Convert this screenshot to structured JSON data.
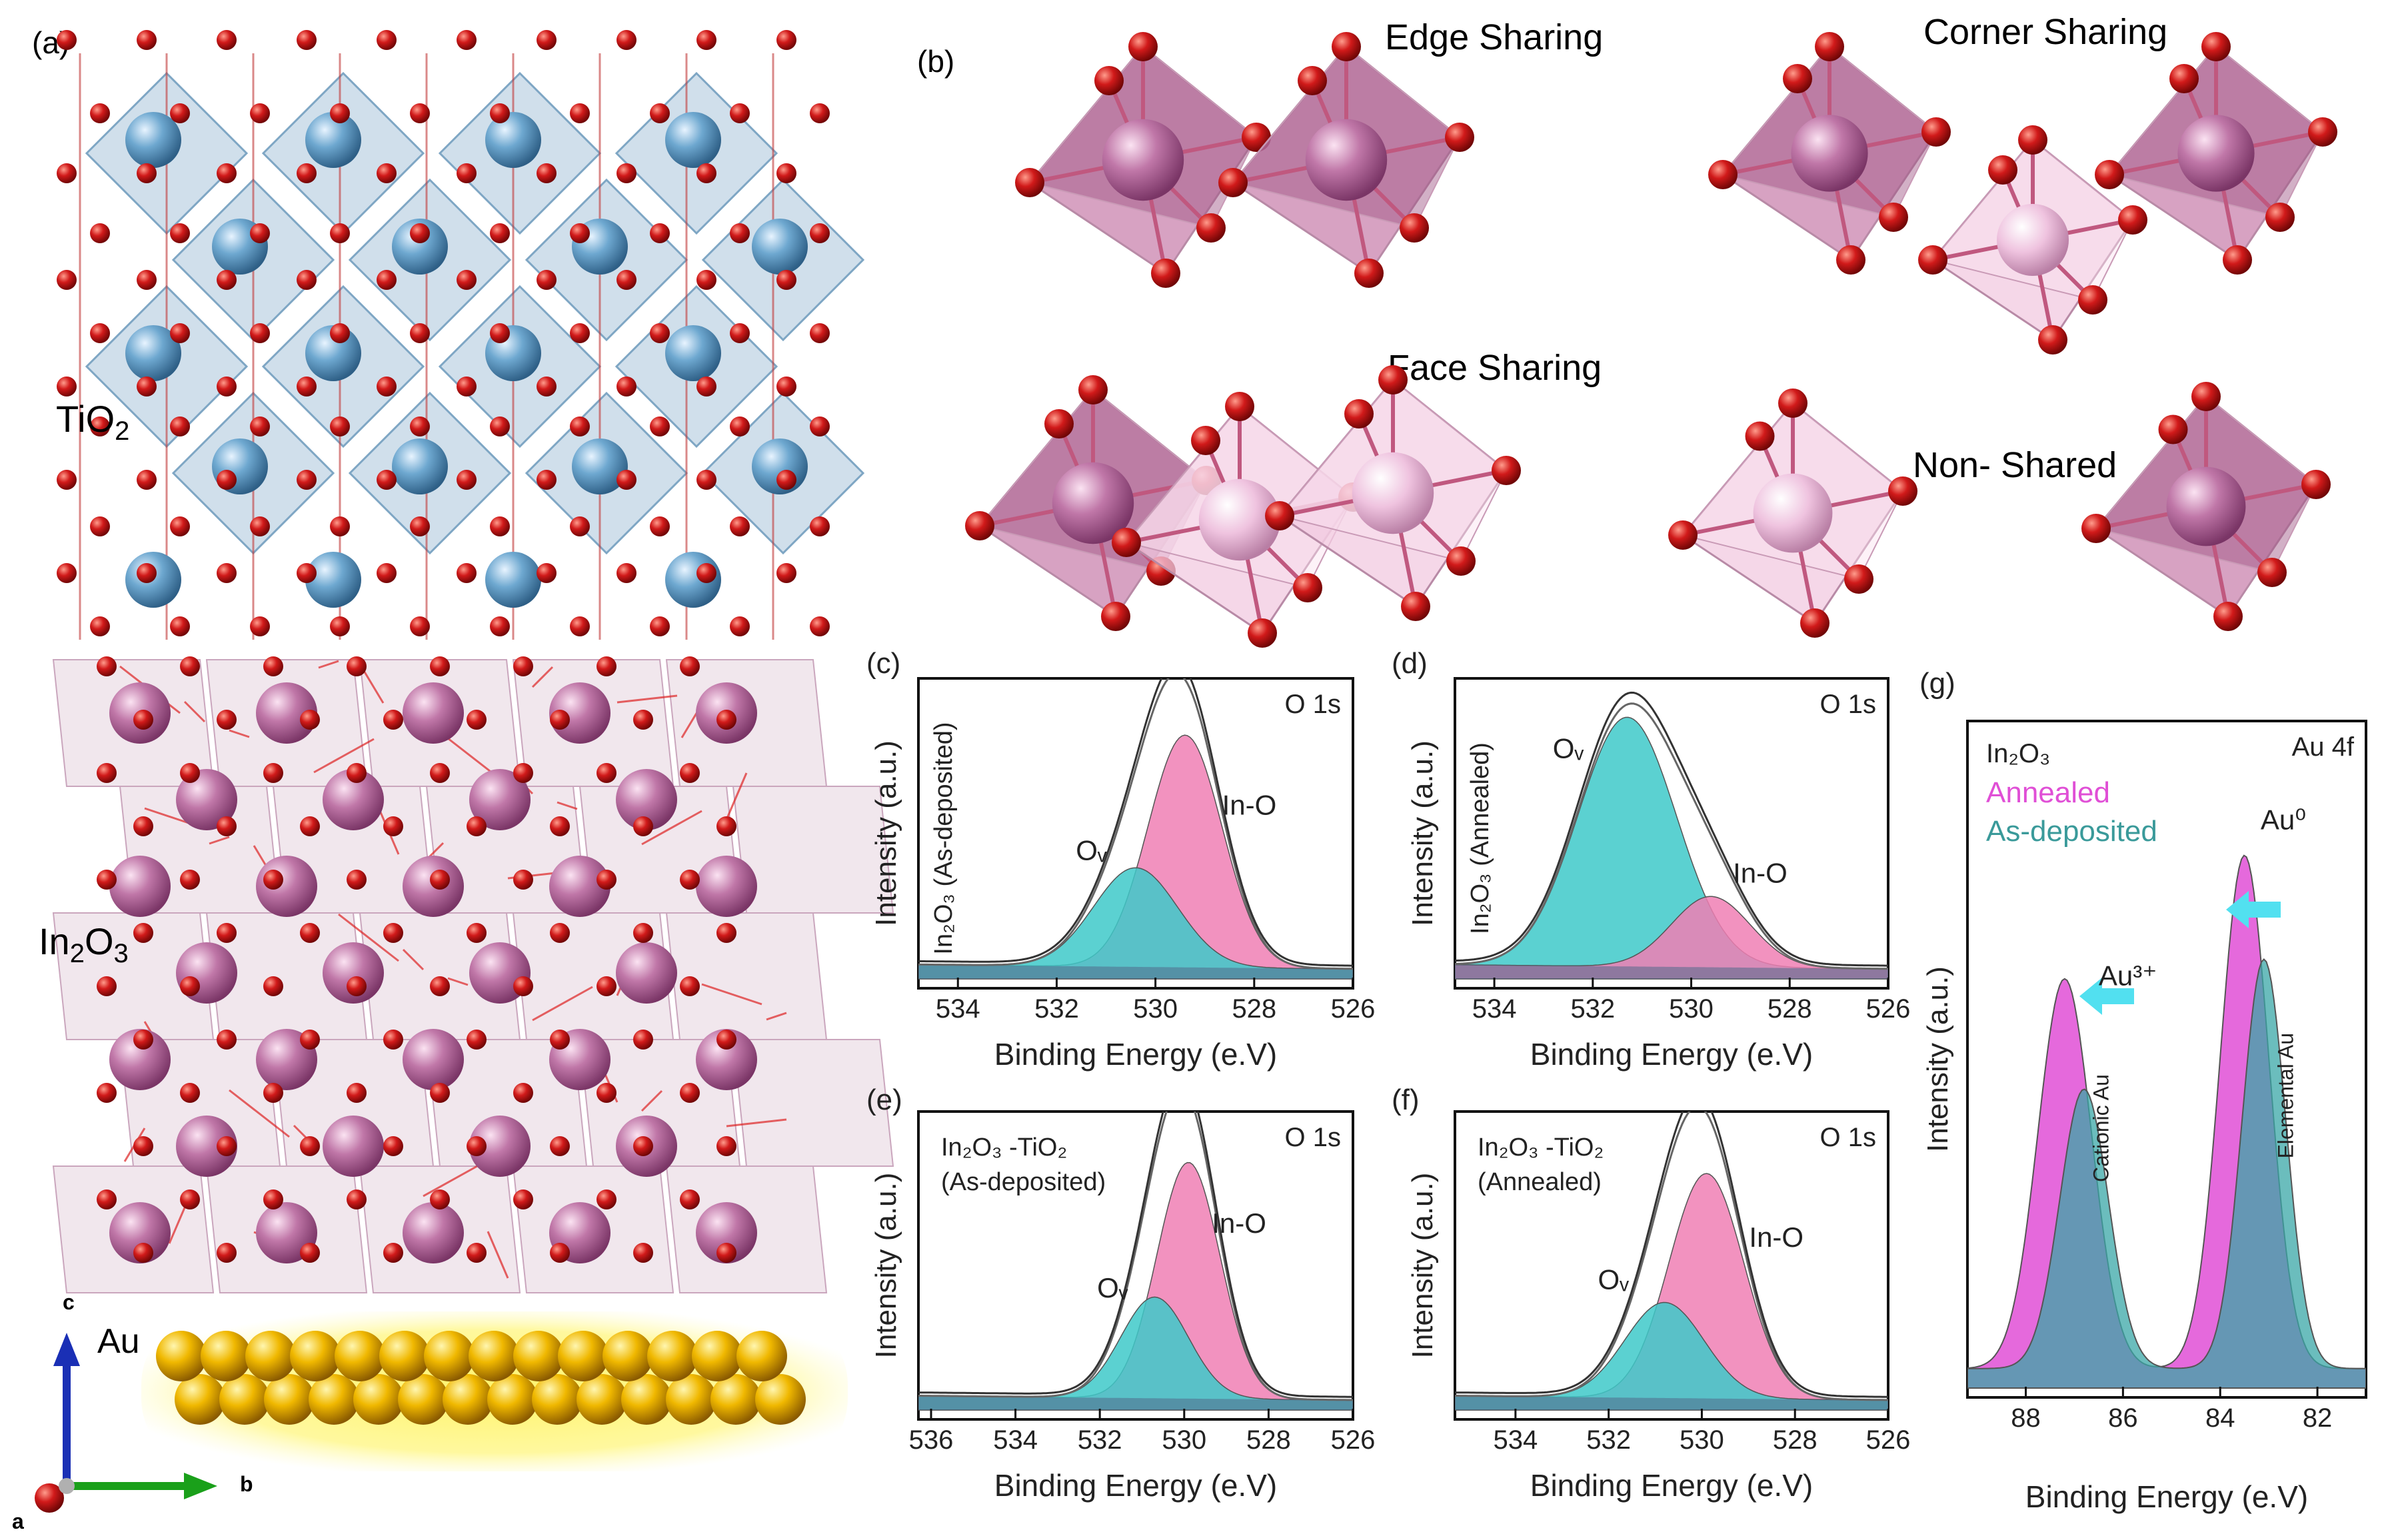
{
  "panels": {
    "a": {
      "label": "(a)",
      "tio2_label": "TiO",
      "tio2_sub": "2",
      "in2o3_label": "In",
      "in2o3_sub1": "2",
      "in2o3_mid": "O",
      "in2o3_sub2": "3",
      "au_label": "Au",
      "axis_a": "a",
      "axis_b": "b",
      "axis_c": "c"
    },
    "b": {
      "label": "(b)",
      "edge": "Edge Sharing",
      "corner": "Corner Sharing",
      "face": "Face Sharing",
      "nonshared": "Non- Shared"
    }
  },
  "colors": {
    "oxygen": "#d01818",
    "titanium": "#6ea8d0",
    "indium": "#c077a8",
    "gold": "#f0b800",
    "tio2_poly": "#a9c5da",
    "in2o3_poly": "#dcc4d3",
    "ov_fill": "#3ec9c9",
    "ino_fill": "#f07fb4",
    "annealed": "#e04fd6",
    "asdep": "#3a9a9a",
    "arrow": "#52e0f0"
  },
  "chart_data": [
    {
      "id": "c",
      "type": "area",
      "panel_label": "(c)",
      "corner": "O 1s",
      "side_label": "In₂O₃ (As-deposited)",
      "xlabel": "Binding Energy (e.V)",
      "ylabel": "Intensity (a.u.)",
      "xlim": [
        534.8,
        526
      ],
      "xticks": [
        534,
        532,
        530,
        528,
        526
      ],
      "series": [
        {
          "name": "In-O",
          "center": 529.4,
          "amplitude": 0.82,
          "width": 0.75
        },
        {
          "name": "Oᵥ",
          "center": 530.4,
          "amplitude": 0.35,
          "width": 0.85
        }
      ],
      "annotations": [
        {
          "text": "Oᵥ",
          "x": 531.3,
          "y": 0.42
        },
        {
          "text": "In-O",
          "x": 528.1,
          "y": 0.58
        }
      ]
    },
    {
      "id": "d",
      "type": "area",
      "panel_label": "(d)",
      "corner": "O 1s",
      "side_label": "In₂O₃ (Annealed)",
      "xlabel": "Binding Energy (e.V)",
      "ylabel": "Intensity (a.u.)",
      "xlim": [
        534.8,
        526
      ],
      "xticks": [
        534,
        532,
        530,
        528,
        526
      ],
      "series": [
        {
          "name": "Oᵥ",
          "center": 531.3,
          "amplitude": 0.88,
          "width": 1.0
        },
        {
          "name": "In-O",
          "center": 529.6,
          "amplitude": 0.25,
          "width": 0.8
        }
      ],
      "annotations": [
        {
          "text": "Oᵥ",
          "x": 532.5,
          "y": 0.78
        },
        {
          "text": "In-O",
          "x": 528.6,
          "y": 0.34
        }
      ]
    },
    {
      "id": "e",
      "type": "area",
      "panel_label": "(e)",
      "corner": "O 1s",
      "side_label_line1": "In₂O₃ -TiO₂",
      "side_label_line2": "(As-deposited)",
      "xlabel": "Binding Energy (e.V)",
      "ylabel": "Intensity (a.u.)",
      "xlim": [
        536.3,
        526
      ],
      "xticks": [
        536,
        534,
        532,
        530,
        528,
        526
      ],
      "series": [
        {
          "name": "In-O",
          "center": 529.9,
          "amplitude": 0.84,
          "width": 0.75
        },
        {
          "name": "Oᵥ",
          "center": 530.7,
          "amplitude": 0.36,
          "width": 0.8
        }
      ],
      "annotations": [
        {
          "text": "Oᵥ",
          "x": 531.7,
          "y": 0.4
        },
        {
          "text": "In-O",
          "x": 528.7,
          "y": 0.63
        }
      ]
    },
    {
      "id": "f",
      "type": "area",
      "panel_label": "(f)",
      "corner": "O 1s",
      "side_label_line1": "In₂O₃ -TiO₂",
      "side_label_line2": "(Annealed)",
      "xlabel": "Binding Energy (e.V)",
      "ylabel": "Intensity (a.u.)",
      "xlim": [
        535.3,
        526
      ],
      "xticks": [
        534,
        532,
        530,
        528,
        526
      ],
      "series": [
        {
          "name": "In-O",
          "center": 529.9,
          "amplitude": 0.8,
          "width": 0.8
        },
        {
          "name": "Oᵥ",
          "center": 530.8,
          "amplitude": 0.34,
          "width": 0.85
        }
      ],
      "annotations": [
        {
          "text": "Oᵥ",
          "x": 531.9,
          "y": 0.43
        },
        {
          "text": "In-O",
          "x": 528.4,
          "y": 0.58
        }
      ]
    },
    {
      "id": "g",
      "type": "area",
      "panel_label": "(g)",
      "corner": "Au 4f",
      "legend_title": "In₂O₃",
      "legend": [
        "Annealed",
        "As-deposited"
      ],
      "xlabel": "Binding Energy (e.V)",
      "ylabel": "Intensity (a.u.)",
      "xlim": [
        89.2,
        81
      ],
      "xticks": [
        88,
        86,
        84,
        82
      ],
      "series": [
        {
          "name": "Annealed",
          "peaks": [
            {
              "center": 87.2,
              "amplitude": 0.6,
              "width": 0.55
            },
            {
              "center": 83.5,
              "amplitude": 0.79,
              "width": 0.5
            }
          ]
        },
        {
          "name": "As-deposited",
          "peaks": [
            {
              "center": 86.8,
              "amplitude": 0.43,
              "width": 0.5
            },
            {
              "center": 83.1,
              "amplitude": 0.63,
              "width": 0.45
            }
          ]
        }
      ],
      "annotations": [
        {
          "text": "Au³⁺",
          "x": 85.9,
          "y": 0.62
        },
        {
          "text": "Au⁰",
          "x": 82.7,
          "y": 0.86
        },
        {
          "text": "Cationic Au",
          "x": 86.3,
          "y": 0.4
        },
        {
          "text": "Elemental Au",
          "x": 82.5,
          "y": 0.45
        }
      ]
    }
  ]
}
